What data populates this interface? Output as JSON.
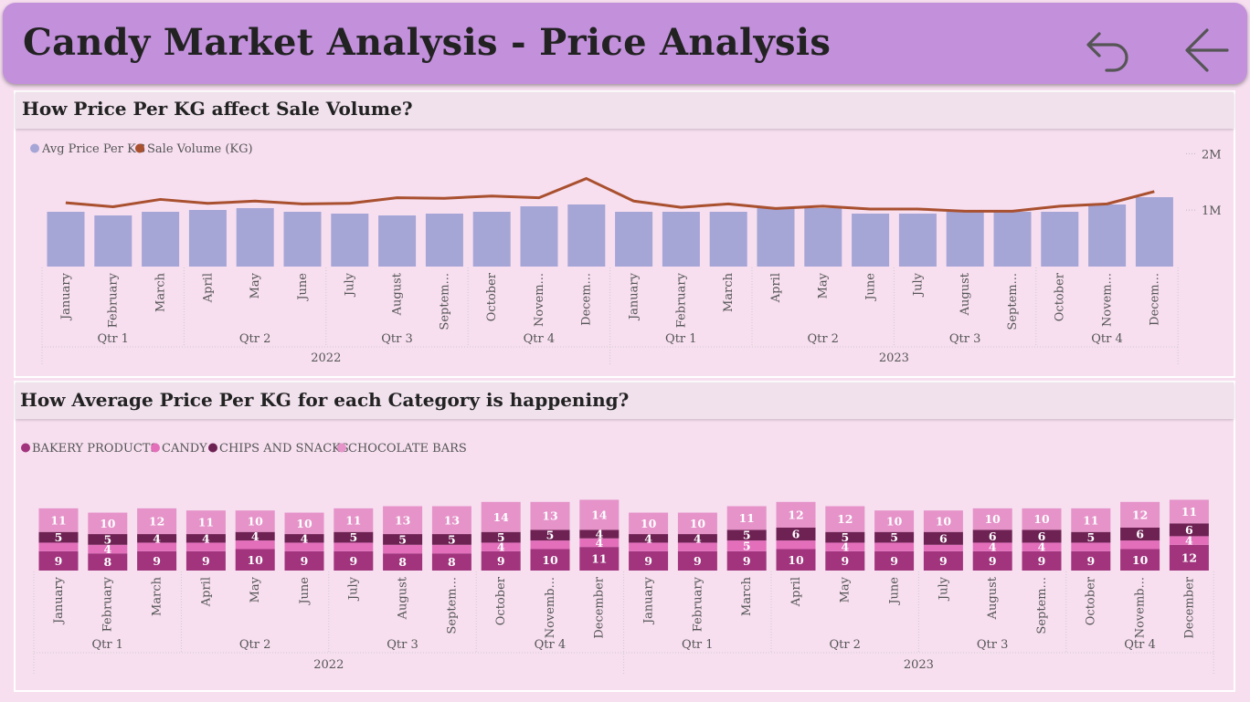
{
  "header": {
    "title": "Candy Market Analysis - Price Analysis",
    "back_icon": "undo-arrow-icon",
    "back_arrow_icon": "left-arrow-icon"
  },
  "colors": {
    "header_bg": "#c390dc",
    "page_bg": "#f7dff0",
    "avg_price": "#a5a5d6",
    "sale_volume": "#a9502f",
    "bakery": "#a1347d",
    "candy": "#e36fbb",
    "chips": "#6e2254",
    "chocolate": "#e593c9"
  },
  "chart_data": [
    {
      "type": "bar",
      "title": "How Price Per KG affect Sale Volume?",
      "legend": [
        "Avg Price Per KG",
        "Sale Volume (KG)"
      ],
      "legend_position": "top-left",
      "categories": [
        "January",
        "February",
        "March",
        "April",
        "May",
        "June",
        "July",
        "August",
        "September",
        "October",
        "November",
        "December",
        "January",
        "February",
        "March",
        "April",
        "May",
        "June",
        "July",
        "August",
        "September",
        "October",
        "November",
        "December"
      ],
      "category_labels": [
        "January",
        "February",
        "March",
        "April",
        "May",
        "June",
        "July",
        "August",
        "Septem...",
        "October",
        "Novem...",
        "Decem...",
        "January",
        "February",
        "March",
        "April",
        "May",
        "June",
        "July",
        "August",
        "Septem...",
        "October",
        "Novem...",
        "Decem..."
      ],
      "quarters": [
        "Qtr 1",
        "Qtr 2",
        "Qtr 3",
        "Qtr 4",
        "Qtr 1",
        "Qtr 2",
        "Qtr 3",
        "Qtr 4"
      ],
      "years": [
        "2022",
        "2023"
      ],
      "series": [
        {
          "name": "Avg Price Per KG",
          "type": "bar",
          "values": [
            30,
            28,
            30,
            31,
            32,
            30,
            29,
            28,
            29,
            30,
            33,
            34,
            30,
            30,
            30,
            32,
            32,
            29,
            29,
            30,
            30,
            30,
            34,
            38
          ]
        },
        {
          "name": "Sale Volume (KG)",
          "type": "line",
          "values": [
            1.13,
            1.06,
            1.19,
            1.12,
            1.16,
            1.11,
            1.12,
            1.22,
            1.21,
            1.25,
            1.22,
            1.56,
            1.16,
            1.05,
            1.11,
            1.03,
            1.07,
            1.02,
            1.02,
            0.98,
            0.98,
            1.07,
            1.11,
            1.33
          ]
        }
      ],
      "right_axis": {
        "ticks": [
          1,
          2
        ],
        "tick_labels": [
          "1M",
          "2M"
        ],
        "range": [
          0,
          2.2
        ]
      },
      "bar_axis_range": [
        0,
        68
      ]
    },
    {
      "type": "bar",
      "stacked": true,
      "title": "How Average Price Per KG for each Category is happening?",
      "legend": [
        "BAKERY PRODUCTS",
        "CANDY",
        "CHIPS AND SNACKS",
        "CHOCOLATE BARS"
      ],
      "legend_position": "top-left",
      "categories": [
        "January",
        "February",
        "March",
        "April",
        "May",
        "June",
        "July",
        "August",
        "September",
        "October",
        "November",
        "December",
        "January",
        "February",
        "March",
        "April",
        "May",
        "June",
        "July",
        "August",
        "September",
        "October",
        "November",
        "December"
      ],
      "category_labels": [
        "January",
        "February",
        "March",
        "April",
        "May",
        "June",
        "July",
        "August",
        "Septem...",
        "October",
        "Novemb...",
        "December",
        "January",
        "February",
        "March",
        "April",
        "May",
        "June",
        "July",
        "August",
        "Septem...",
        "October",
        "Novemb...",
        "December"
      ],
      "quarters": [
        "Qtr 1",
        "Qtr 2",
        "Qtr 3",
        "Qtr 4",
        "Qtr 1",
        "Qtr 2",
        "Qtr 3",
        "Qtr 4"
      ],
      "years": [
        "2022",
        "2023"
      ],
      "series": [
        {
          "name": "BAKERY PRODUCTS",
          "values": [
            9,
            8,
            9,
            9,
            10,
            9,
            9,
            8,
            8,
            9,
            10,
            11,
            9,
            9,
            9,
            10,
            9,
            9,
            9,
            9,
            9,
            9,
            10,
            12
          ]
        },
        {
          "name": "CANDY",
          "values": [
            4,
            4,
            4,
            4,
            4,
            4,
            4,
            4,
            4,
            4,
            4,
            4,
            4,
            4,
            5,
            4,
            4,
            4,
            3,
            4,
            4,
            4,
            4,
            4
          ]
        },
        {
          "name": "CHIPS AND SNACKS",
          "values": [
            5,
            5,
            4,
            4,
            4,
            4,
            5,
            5,
            5,
            5,
            5,
            4,
            4,
            4,
            5,
            6,
            5,
            5,
            6,
            6,
            6,
            5,
            6,
            6
          ]
        },
        {
          "name": "CHOCOLATE BARS",
          "values": [
            11,
            10,
            12,
            11,
            10,
            10,
            11,
            13,
            13,
            14,
            13,
            14,
            10,
            10,
            11,
            12,
            12,
            10,
            10,
            10,
            10,
            11,
            12,
            11
          ]
        }
      ],
      "segment_labels": {
        "BAKERY PRODUCTS": [
          "9",
          "8",
          "9",
          "9",
          "10",
          "9",
          "9",
          "8",
          "8",
          "9",
          "10",
          "11",
          "9",
          "9",
          "9",
          "10",
          "9",
          "9",
          "9",
          "9",
          "9",
          "9",
          "10",
          "12"
        ],
        "CANDY": [
          "",
          "4",
          "",
          "",
          "",
          "",
          "",
          "",
          "",
          "4",
          "",
          "4",
          "",
          "",
          "5",
          "",
          "4",
          "",
          "",
          "4",
          "4",
          "",
          "",
          "4"
        ],
        "CHIPS AND SNACKS": [
          "5",
          "5",
          "4",
          "4",
          "4",
          "4",
          "5",
          "5",
          "5",
          "5",
          "5",
          "4",
          "4",
          "4",
          "5",
          "6",
          "5",
          "5",
          "6",
          "6",
          "6",
          "5",
          "6",
          "6"
        ],
        "CHOCOLATE BARS": [
          "11",
          "10",
          "12",
          "11",
          "10",
          "10",
          "11",
          "13",
          "13",
          "14",
          "13",
          "14",
          "10",
          "10",
          "11",
          "12",
          "12",
          "10",
          "10",
          "10",
          "10",
          "11",
          "12",
          "11"
        ]
      }
    }
  ]
}
